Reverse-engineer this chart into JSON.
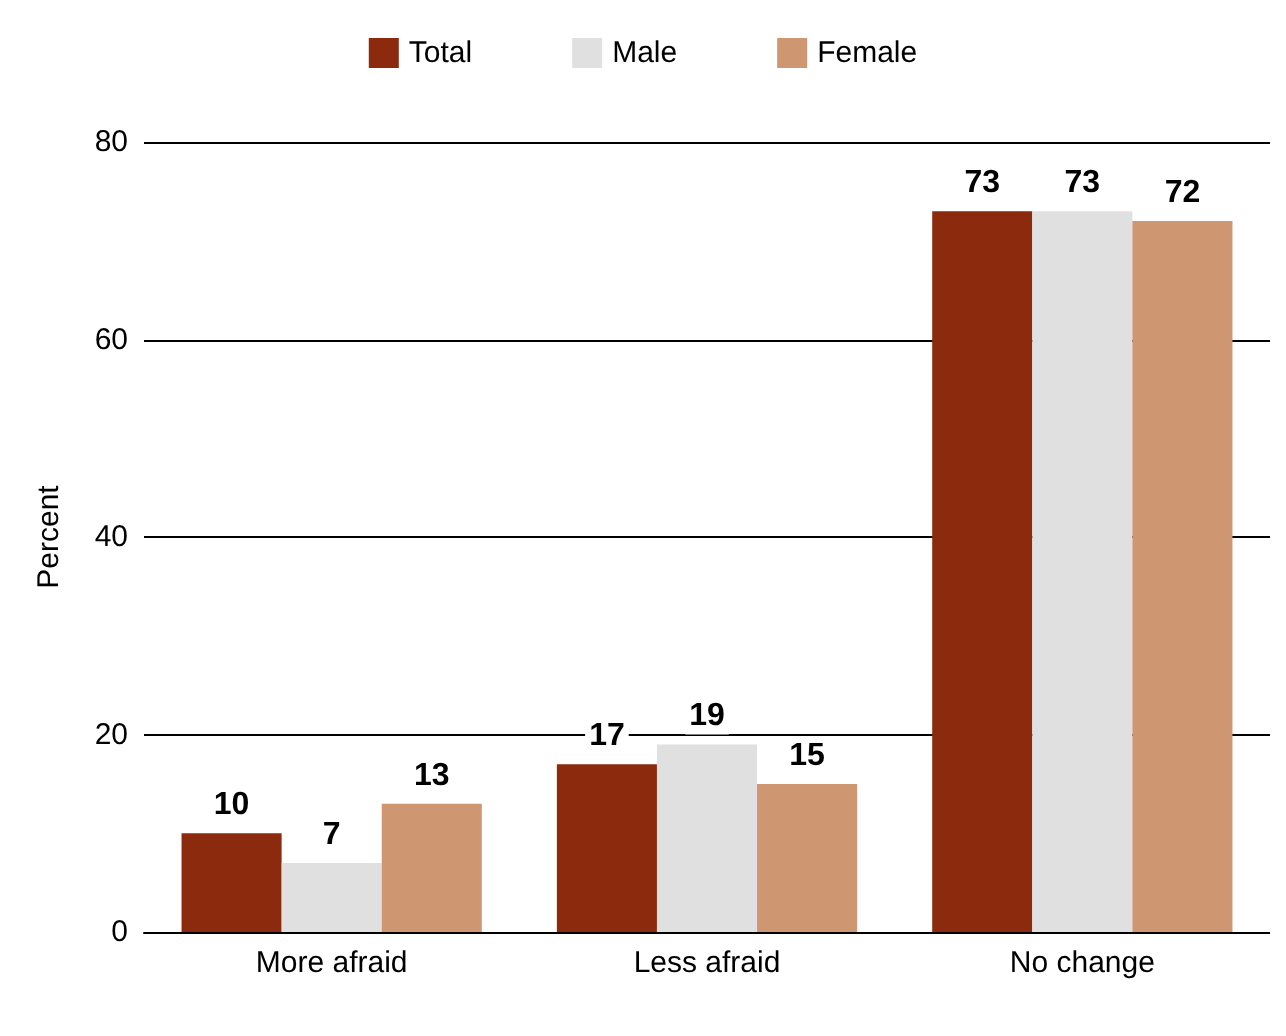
{
  "chart_data": {
    "type": "bar",
    "ylabel": "Percent",
    "categories": [
      "More afraid",
      "Less afraid",
      "No change"
    ],
    "series": [
      {
        "name": "Total",
        "color": "#8b2a0c",
        "values": [
          10,
          17,
          73
        ]
      },
      {
        "name": "Male",
        "color": "#e0e0e0",
        "values": [
          7,
          19,
          73
        ]
      },
      {
        "name": "Female",
        "color": "#cf9672",
        "values": [
          13,
          15,
          72
        ]
      }
    ],
    "ylim": [
      0,
      80
    ],
    "yticks": [
      0,
      20,
      40,
      60,
      80
    ],
    "grid": "y",
    "legend": "top",
    "data_labels": true
  }
}
